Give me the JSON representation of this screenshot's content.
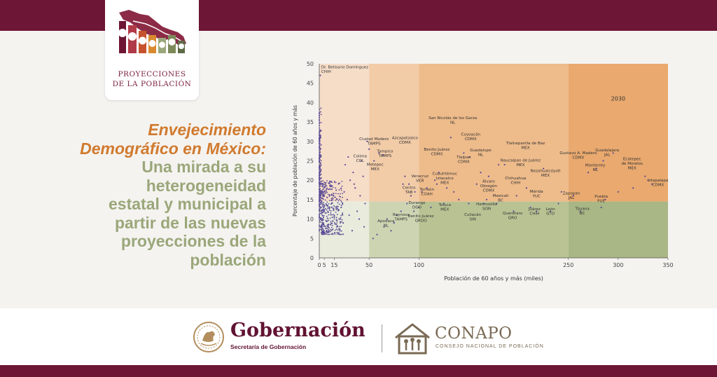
{
  "logo": {
    "line1": "PROYECCIONES",
    "line2": "DE LA POBLACIÓN"
  },
  "headline": {
    "line1": "Envejecimiento",
    "line2": "Demográfico en México:",
    "line3": "Una mirada a su",
    "line4": "heterogeneidad",
    "line5": "estatal y municipal a",
    "line6": "partir de las nuevas",
    "line7": "proyecciones de la",
    "line8": "población"
  },
  "footer": {
    "gob_title": "Gobernación",
    "gob_sub": "Secretaría de Gobernación",
    "conapo_title": "CONAPO",
    "conapo_sub": "CONSEJO NACIONAL DE POBLACIÓN"
  },
  "colors": {
    "maroon": "#6e1635",
    "orange_title": "#d07a2e",
    "green_title": "#9aa77a",
    "points": "#5b4b94"
  },
  "chart_data": {
    "type": "scatter",
    "year_label": "2030",
    "xlabel": "Población de 60 años y más (miles)",
    "ylabel": "Porcentaje de población de 60 años y más",
    "xlim": [
      0,
      350
    ],
    "ylim": [
      0,
      50
    ],
    "xticks": [
      "0",
      "5",
      "15",
      "50",
      "100",
      "250",
      "300",
      "350"
    ],
    "xtick_values": [
      0,
      5,
      15,
      50,
      100,
      250,
      300,
      350
    ],
    "yticks": [
      "0",
      "5",
      "10",
      "15",
      "20",
      "25",
      "30",
      "35",
      "40",
      "45",
      "50"
    ],
    "ytick_values": [
      0,
      5,
      10,
      15,
      20,
      25,
      30,
      35,
      40,
      45,
      50
    ],
    "threshold_y": 14.5,
    "regions": [
      {
        "x0": 0,
        "x1": 50,
        "y0": 14.5,
        "y1": 50,
        "color": "#f6ddc8"
      },
      {
        "x0": 50,
        "x1": 100,
        "y0": 14.5,
        "y1": 50,
        "color": "#f2cba7"
      },
      {
        "x0": 100,
        "x1": 250,
        "y0": 14.5,
        "y1": 50,
        "color": "#eebb8b"
      },
      {
        "x0": 250,
        "x1": 350,
        "y0": 14.5,
        "y1": 50,
        "color": "#e9a96f"
      },
      {
        "x0": 0,
        "x1": 50,
        "y0": 0,
        "y1": 14.5,
        "color": "#e9ecdd"
      },
      {
        "x0": 50,
        "x1": 100,
        "y0": 0,
        "y1": 14.5,
        "color": "#cdd4b2"
      },
      {
        "x0": 100,
        "x1": 250,
        "y0": 0,
        "y1": 14.5,
        "color": "#b8c293"
      },
      {
        "x0": 250,
        "x1": 350,
        "y0": 0,
        "y1": 14.5,
        "color": "#a9b685"
      }
    ],
    "points": [
      [
        1,
        47
      ],
      [
        48,
        30
      ],
      [
        50,
        28
      ],
      [
        55,
        25
      ],
      [
        64,
        26.5
      ],
      [
        60,
        27
      ],
      [
        84,
        19
      ],
      [
        86,
        21
      ],
      [
        90,
        19
      ],
      [
        96,
        17
      ],
      [
        103,
        17
      ],
      [
        116,
        20
      ],
      [
        120,
        22
      ],
      [
        132,
        31
      ],
      [
        145,
        27
      ],
      [
        151,
        26
      ],
      [
        162,
        22
      ],
      [
        170,
        21
      ],
      [
        180,
        24
      ],
      [
        186,
        24
      ],
      [
        225,
        23
      ],
      [
        243,
        17
      ],
      [
        270,
        22
      ],
      [
        278,
        23
      ],
      [
        285,
        25
      ],
      [
        295,
        27
      ],
      [
        330,
        20
      ],
      [
        334,
        19
      ],
      [
        72,
        7
      ],
      [
        82,
        12
      ],
      [
        95,
        12
      ],
      [
        100,
        13
      ],
      [
        112,
        13
      ],
      [
        125,
        14
      ],
      [
        140,
        15
      ],
      [
        150,
        14
      ],
      [
        165,
        14
      ],
      [
        178,
        14
      ],
      [
        195,
        12
      ],
      [
        218,
        12
      ],
      [
        232,
        12
      ],
      [
        262,
        12
      ],
      [
        283,
        13
      ],
      [
        287,
        15
      ],
      [
        54,
        5
      ],
      [
        58,
        6
      ],
      [
        65,
        8
      ],
      [
        68,
        10
      ],
      [
        75,
        9
      ],
      [
        78,
        11
      ],
      [
        88,
        14
      ],
      [
        92,
        16
      ],
      [
        108,
        18
      ],
      [
        118,
        19
      ],
      [
        128,
        18
      ],
      [
        135,
        17
      ],
      [
        158,
        19
      ],
      [
        168,
        15
      ],
      [
        198,
        16
      ],
      [
        208,
        18
      ],
      [
        212,
        13
      ],
      [
        240,
        14
      ],
      [
        255,
        16
      ],
      [
        300,
        17
      ],
      [
        315,
        18
      ],
      [
        327,
        21
      ],
      [
        22,
        13
      ],
      [
        25,
        17
      ],
      [
        28,
        15
      ],
      [
        31,
        20
      ],
      [
        34,
        22
      ],
      [
        36,
        18
      ],
      [
        38,
        12
      ],
      [
        41,
        16
      ],
      [
        44,
        21
      ],
      [
        46,
        14
      ],
      [
        20,
        10
      ],
      [
        24,
        9
      ],
      [
        30,
        11
      ],
      [
        33,
        7
      ],
      [
        40,
        10
      ],
      [
        45,
        8
      ],
      [
        26,
        24
      ],
      [
        29,
        26
      ],
      [
        35,
        19
      ],
      [
        42,
        25
      ]
    ],
    "annotations": [
      {
        "x": 2,
        "y": 48.8,
        "lines": [
          "Dr. Belisario Domínguez",
          "CHIH"
        ],
        "anchor": "start"
      },
      {
        "x": 55,
        "y": 30.3,
        "lines": [
          "Ciudad Madero",
          "TAMPS"
        ],
        "anchor": "middle"
      },
      {
        "x": 66,
        "y": 27.2,
        "lines": [
          "Tampico",
          "TAMPS"
        ],
        "anchor": "middle"
      },
      {
        "x": 41,
        "y": 25.9,
        "lines": [
          "Colima",
          "COL"
        ],
        "anchor": "middle"
      },
      {
        "x": 56,
        "y": 23.7,
        "lines": [
          "Metepec",
          "MEX"
        ],
        "anchor": "middle"
      },
      {
        "x": 86,
        "y": 30.6,
        "lines": [
          "Azcapotzalco",
          "CDMX"
        ],
        "anchor": "middle"
      },
      {
        "x": 134,
        "y": 35.7,
        "lines": [
          "San Nicolás de los Garza",
          "NL"
        ],
        "anchor": "middle"
      },
      {
        "x": 152,
        "y": 31.5,
        "lines": [
          "Coyoacán",
          "CDMX"
        ],
        "anchor": "middle"
      },
      {
        "x": 118,
        "y": 27.6,
        "lines": [
          "Benito Juárez",
          "CDMX"
        ],
        "anchor": "middle"
      },
      {
        "x": 162,
        "y": 27.4,
        "lines": [
          "Guadalupe",
          "NL"
        ],
        "anchor": "middle"
      },
      {
        "x": 145,
        "y": 25.6,
        "lines": [
          "Tlalpan",
          "CDMX"
        ],
        "anchor": "middle"
      },
      {
        "x": 207,
        "y": 29.2,
        "lines": [
          "Tlalnepantla de Baz",
          "MEX"
        ],
        "anchor": "middle"
      },
      {
        "x": 202,
        "y": 24.8,
        "lines": [
          "Naucalpan de Juárez",
          "MEX"
        ],
        "anchor": "middle"
      },
      {
        "x": 126,
        "y": 21.4,
        "lines": [
          "Cuauhtémoc",
          "Iztacalco",
          "MEX"
        ],
        "anchor": "middle"
      },
      {
        "x": 101,
        "y": 20.8,
        "lines": [
          "Veracruz",
          "VER"
        ],
        "anchor": "middle"
      },
      {
        "x": 90,
        "y": 17.8,
        "lines": [
          "Centro",
          "TAB"
        ],
        "anchor": "middle"
      },
      {
        "x": 108,
        "y": 17.3,
        "lines": [
          "Torreón",
          "COAH"
        ],
        "anchor": "middle"
      },
      {
        "x": 170,
        "y": 19.4,
        "lines": [
          "Álvaro",
          "Obregón",
          "CDMX"
        ],
        "anchor": "middle"
      },
      {
        "x": 197,
        "y": 20.2,
        "lines": [
          "Chihuahua",
          "CHIH"
        ],
        "anchor": "middle"
      },
      {
        "x": 227,
        "y": 22.1,
        "lines": [
          "Nezahualcóyotl",
          "MEX"
        ],
        "anchor": "middle"
      },
      {
        "x": 260,
        "y": 26.7,
        "lines": [
          "Gustavo A. Madero",
          "CDMX"
        ],
        "anchor": "middle"
      },
      {
        "x": 289,
        "y": 27.4,
        "lines": [
          "Guadalajara",
          "JAL"
        ],
        "anchor": "middle"
      },
      {
        "x": 277,
        "y": 23.6,
        "lines": [
          "Monterrey",
          "NL"
        ],
        "anchor": "middle"
      },
      {
        "x": 314,
        "y": 25.2,
        "lines": [
          "Ecatepec",
          "de Morelos",
          "MEX"
        ],
        "anchor": "middle"
      },
      {
        "x": 340,
        "y": 19.7,
        "lines": [
          "Iztapalapa",
          "CDMX"
        ],
        "anchor": "middle"
      },
      {
        "x": 98,
        "y": 13.9,
        "lines": [
          "Durango",
          "DGO"
        ],
        "anchor": "middle"
      },
      {
        "x": 82,
        "y": 10.8,
        "lines": [
          "Reynosa",
          "TAMPS"
        ],
        "anchor": "middle"
      },
      {
        "x": 67,
        "y": 9.2,
        "lines": [
          "Apodaca",
          "NL"
        ],
        "anchor": "middle"
      },
      {
        "x": 102,
        "y": 10.5,
        "lines": [
          "Benito Juárez",
          "QROO"
        ],
        "anchor": "middle"
      },
      {
        "x": 126,
        "y": 13.4,
        "lines": [
          "Toluca",
          "MEX"
        ],
        "anchor": "middle"
      },
      {
        "x": 154,
        "y": 10.8,
        "lines": [
          "Culiacán",
          "SIN"
        ],
        "anchor": "middle"
      },
      {
        "x": 168,
        "y": 13.5,
        "lines": [
          "Hermosillo",
          "SON"
        ],
        "anchor": "middle"
      },
      {
        "x": 182,
        "y": 15.7,
        "lines": [
          "Mexicali",
          "BC"
        ],
        "anchor": "middle"
      },
      {
        "x": 194,
        "y": 11.2,
        "lines": [
          "Querétaro",
          "QRO"
        ],
        "anchor": "middle"
      },
      {
        "x": 218,
        "y": 16.8,
        "lines": [
          "Mérida",
          "YUC"
        ],
        "anchor": "middle"
      },
      {
        "x": 216,
        "y": 12.3,
        "lines": [
          "Juárez",
          "CHIH"
        ],
        "anchor": "middle"
      },
      {
        "x": 232,
        "y": 12.3,
        "lines": [
          "León",
          "GTO"
        ],
        "anchor": "middle"
      },
      {
        "x": 253,
        "y": 16.3,
        "lines": [
          "Zapopan",
          "JAL"
        ],
        "anchor": "middle"
      },
      {
        "x": 264,
        "y": 12.4,
        "lines": [
          "Tijuana",
          "BC"
        ],
        "anchor": "middle"
      },
      {
        "x": 283,
        "y": 15.5,
        "lines": [
          "Puebla",
          "PUE"
        ],
        "anchor": "middle"
      }
    ]
  }
}
